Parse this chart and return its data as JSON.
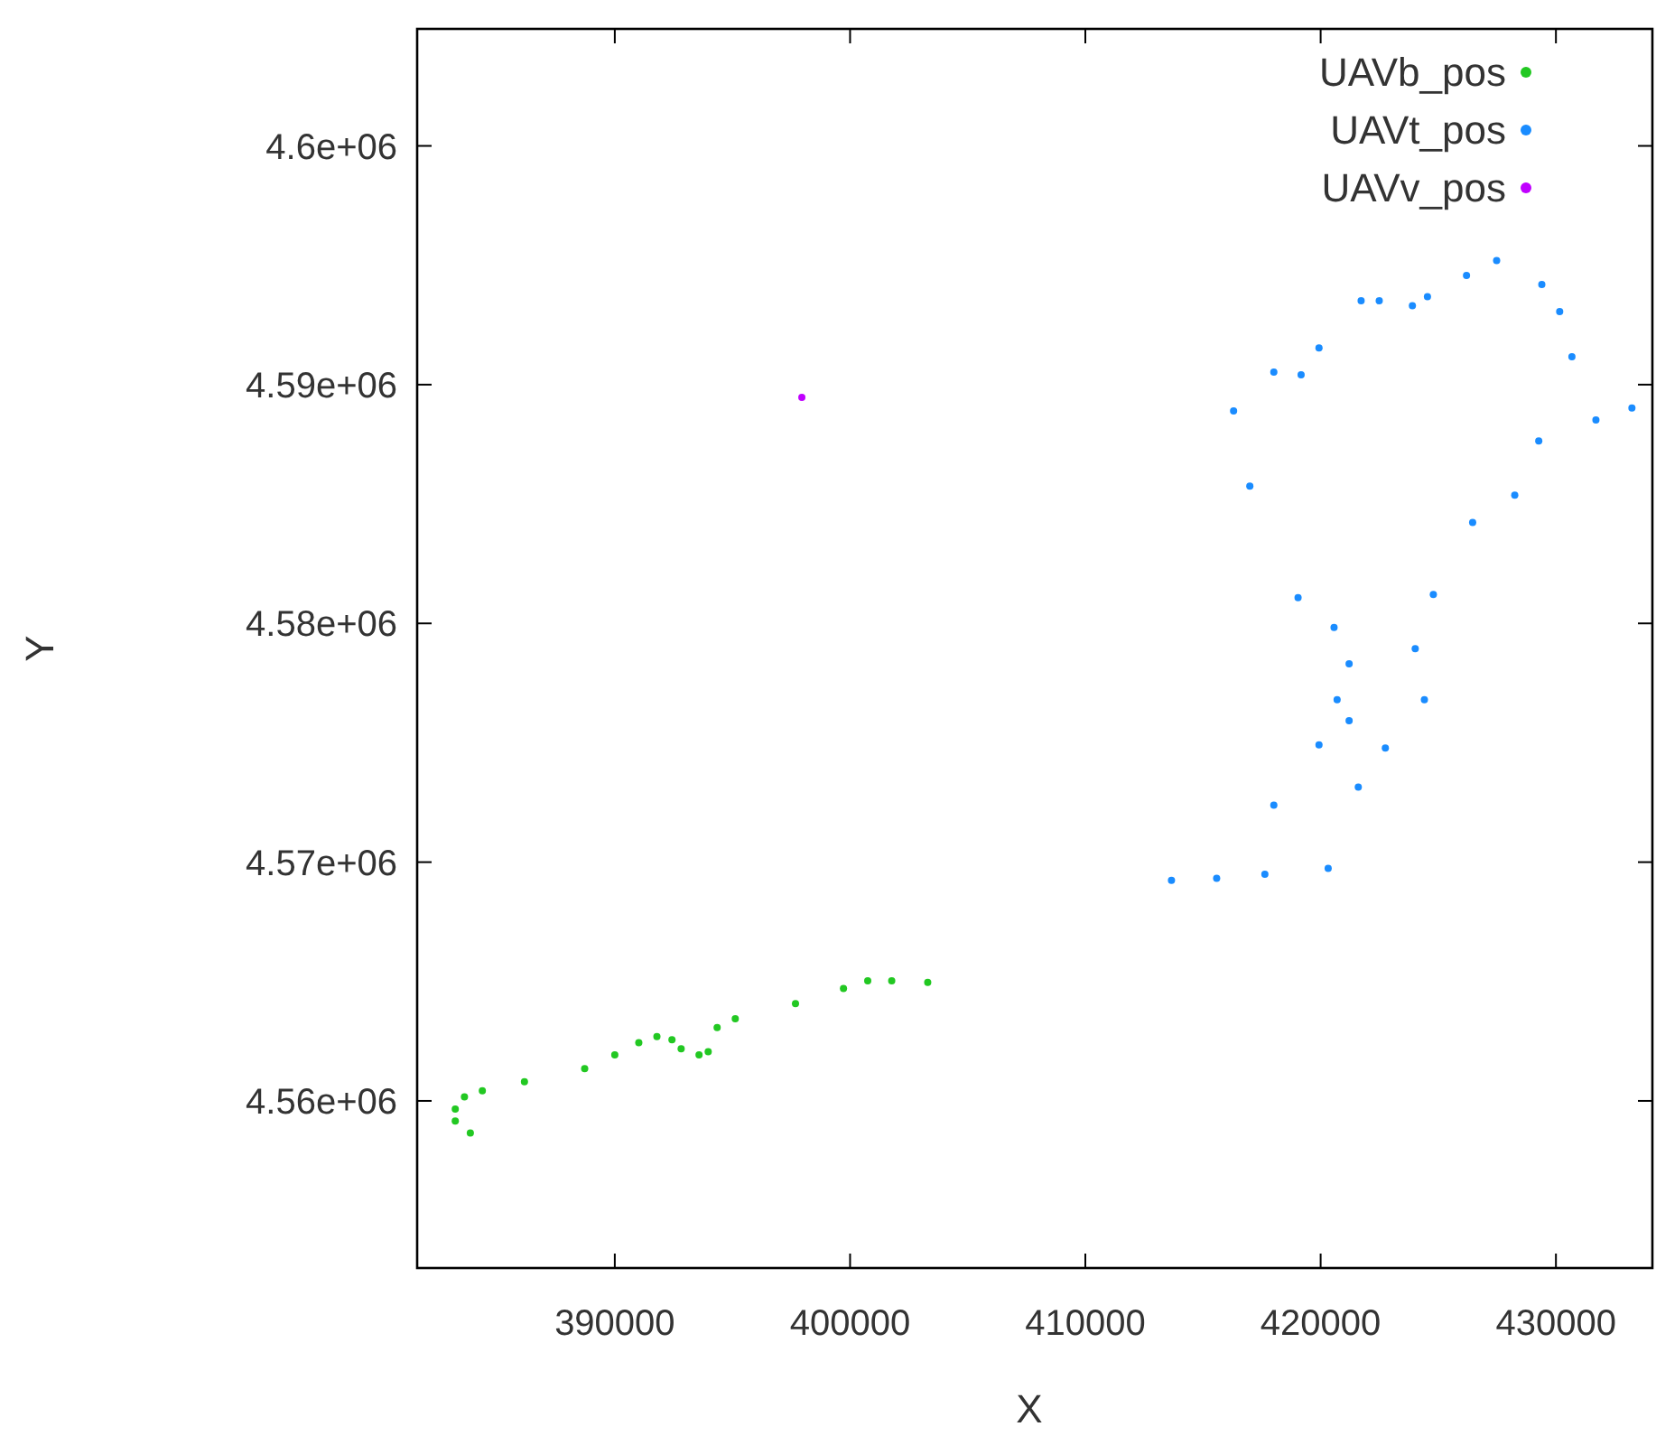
{
  "chart_data": {
    "type": "scatter",
    "xlabel": "X",
    "ylabel": "Y",
    "xlim": [
      381600,
      434100
    ],
    "ylim": [
      4553000,
      4604900
    ],
    "xticks": [
      390000,
      400000,
      410000,
      420000,
      430000
    ],
    "yticks": [
      {
        "value": 4560000,
        "label": "4.56e+06"
      },
      {
        "value": 4570000,
        "label": "4.57e+06"
      },
      {
        "value": 4580000,
        "label": "4.58e+06"
      },
      {
        "value": 4590000,
        "label": "4.59e+06"
      },
      {
        "value": 4600000,
        "label": "4.6e+06"
      }
    ],
    "grid": false,
    "legend": "top right",
    "marker": "circle",
    "series": [
      {
        "name": "UAVb_pos",
        "color": "#22c822",
        "x": [
          383860,
          403300,
          401770,
          400750,
          399720,
          397680,
          395120,
          394350,
          393970,
          393580,
          392820,
          392430,
          391790,
          391020,
          390000,
          388720,
          386160,
          384370,
          383610,
          383220,
          383220
        ],
        "values": [
          4558660,
          4564960,
          4565030,
          4565030,
          4564710,
          4564070,
          4563440,
          4563070,
          4562060,
          4561930,
          4562180,
          4562560,
          4562690,
          4562440,
          4561930,
          4561350,
          4560800,
          4560420,
          4560170,
          4559660,
          4559160
        ]
      },
      {
        "name": "UAVt_pos",
        "color": "#1a8cff",
        "x": [
          413660,
          415580,
          417630,
          420320,
          421600,
          422750,
          424410,
          424020,
          424790,
          426460,
          428250,
          429270,
          431700,
          433230,
          430680,
          430160,
          429400,
          427480,
          426200,
          424540,
          423900,
          422490,
          421720,
          419930,
          419170,
          418010,
          416300,
          416990,
          419040,
          420570,
          421210,
          420700,
          421210,
          419930,
          418010
        ],
        "values": [
          4569240,
          4569320,
          4569490,
          4569740,
          4573140,
          4574780,
          4576800,
          4578940,
          4581210,
          4584230,
          4585370,
          4587640,
          4588520,
          4589020,
          4591170,
          4593060,
          4594190,
          4595200,
          4594570,
          4593680,
          4593310,
          4593510,
          4593510,
          4591540,
          4590410,
          4590530,
          4588900,
          4585750,
          4581080,
          4579830,
          4578310,
          4576800,
          4575920,
          4574910,
          4572390
        ]
      },
      {
        "name": "UAVv_pos",
        "color": "#c000ff",
        "x": [
          397950
        ],
        "values": [
          4589470
        ]
      }
    ]
  }
}
